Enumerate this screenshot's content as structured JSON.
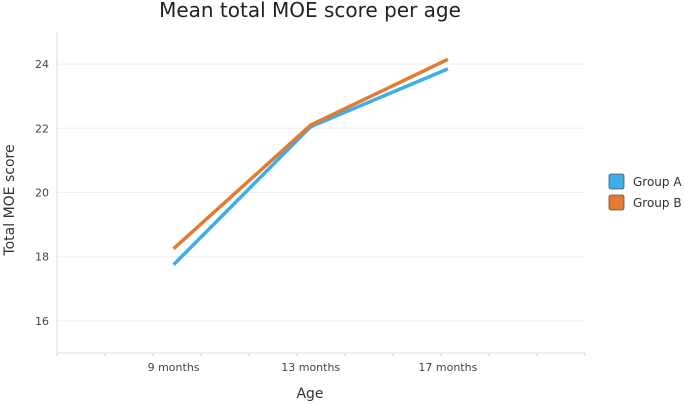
{
  "chart_data": {
    "type": "line",
    "title": "Mean total MOE score per age",
    "xlabel": "Age",
    "ylabel": "Total MOE score",
    "categories": [
      "9 months",
      "13 months",
      "17 months"
    ],
    "ylim": [
      15,
      25
    ],
    "yticks": [
      16,
      18,
      20,
      22,
      24
    ],
    "grid": true,
    "legend_position": "right",
    "series": [
      {
        "name": "Group A",
        "color": "#3daee9",
        "values": [
          17.75,
          22.05,
          23.85
        ]
      },
      {
        "name": "Group B",
        "color": "#e57a2f",
        "values": [
          18.25,
          22.1,
          24.15
        ]
      }
    ]
  }
}
